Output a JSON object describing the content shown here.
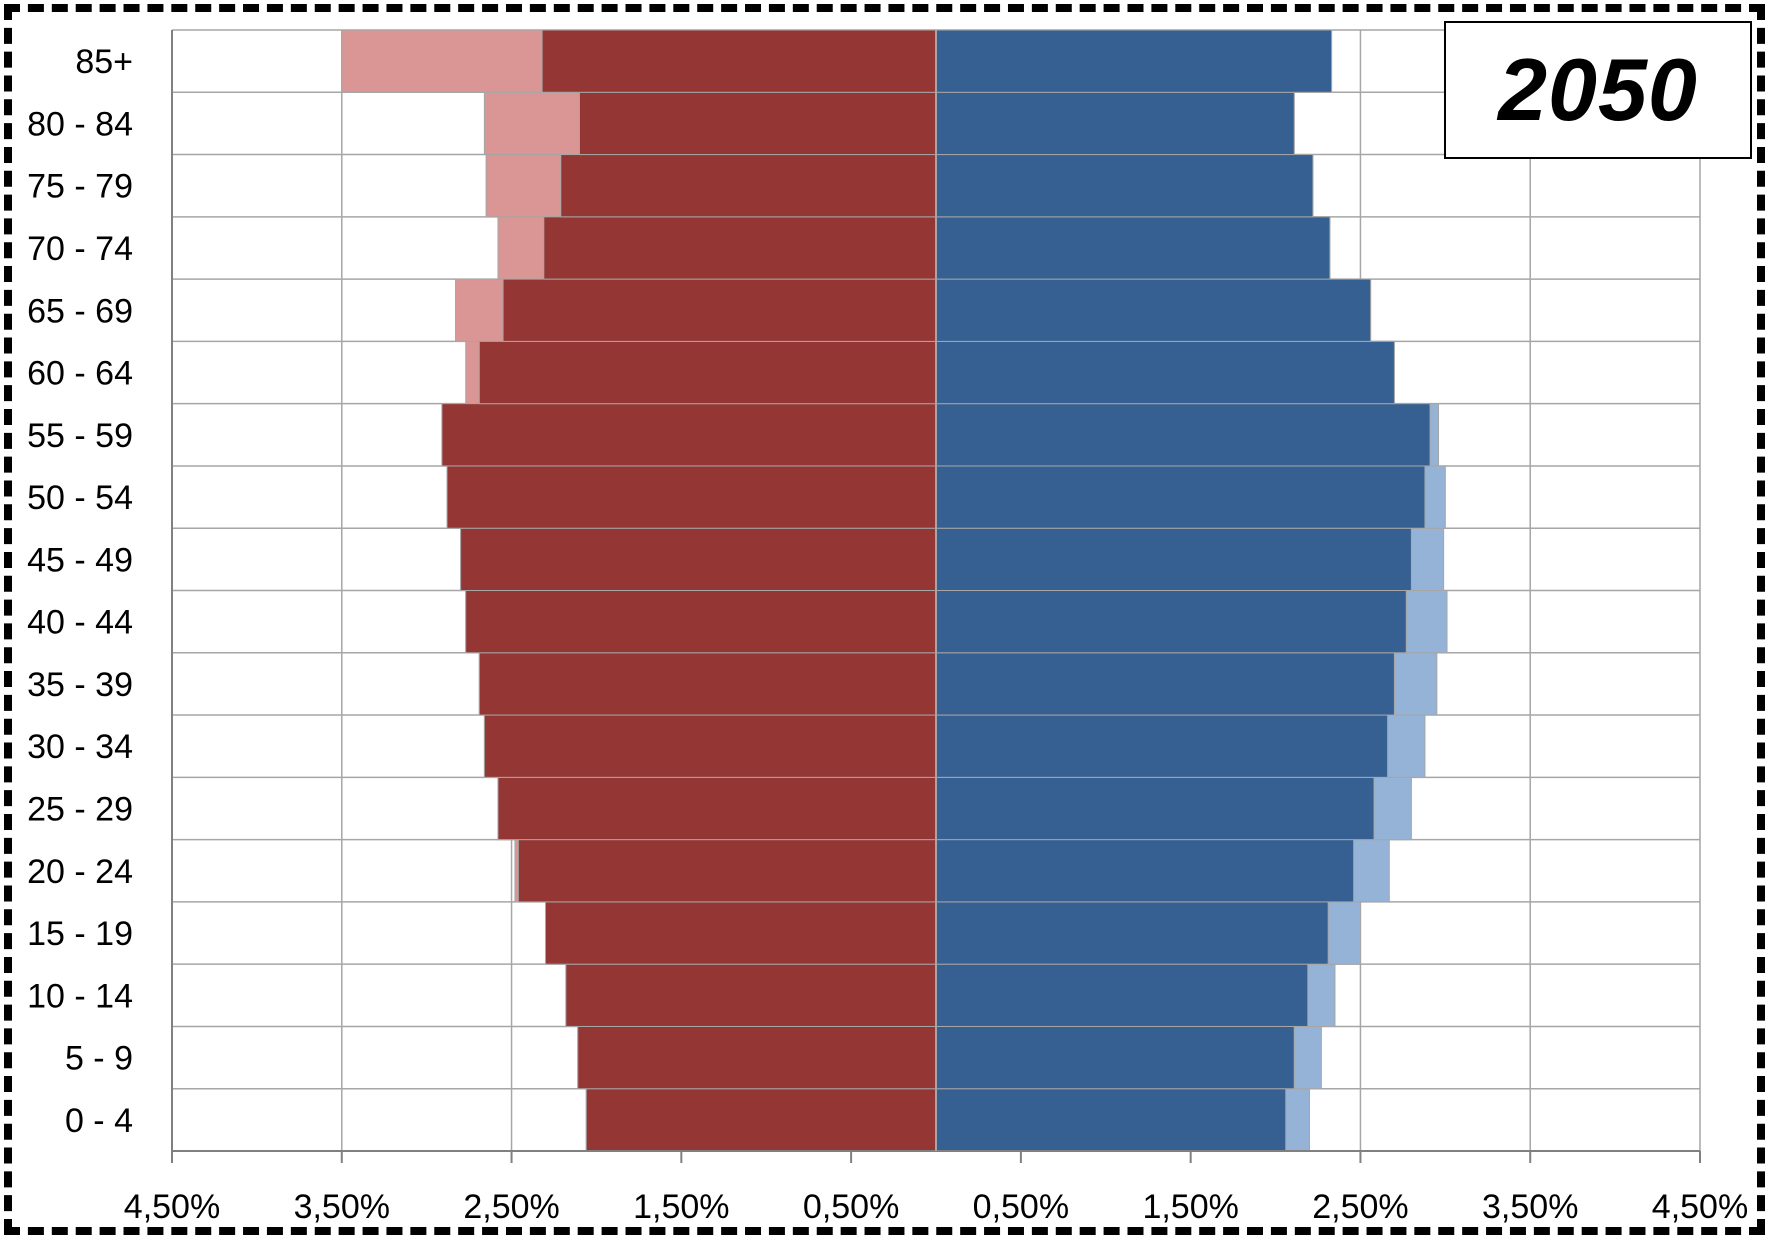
{
  "chart_data": {
    "type": "bar",
    "orientation": "horizontal-population-pyramid",
    "title": "2050",
    "categories": [
      "0 - 4",
      "5 - 9",
      "10 - 14",
      "15 - 19",
      "20 - 24",
      "25 - 29",
      "30 - 34",
      "35 - 39",
      "40 - 44",
      "45 - 49",
      "50 - 54",
      "55 - 59",
      "60 - 64",
      "65 - 69",
      "70 - 74",
      "75 - 79",
      "80 - 84",
      "85+"
    ],
    "x_tick_labels": [
      "4,50%",
      "3,50%",
      "2,50%",
      "1,50%",
      "0,50%",
      "0,50%",
      "1,50%",
      "2,50%",
      "3,50%",
      "4,50%"
    ],
    "xlim": [
      -4.5,
      4.5
    ],
    "series": [
      {
        "side": "left",
        "color": "#943634",
        "values": [
          2.06,
          2.11,
          2.18,
          2.3,
          2.46,
          2.58,
          2.66,
          2.69,
          2.77,
          2.8,
          2.88,
          2.91,
          2.69,
          2.55,
          2.31,
          2.21,
          2.1,
          2.32
        ]
      },
      {
        "side": "left",
        "color": "#D99694",
        "values": [
          2.06,
          2.11,
          2.18,
          2.3,
          2.48,
          2.58,
          2.66,
          2.69,
          2.77,
          2.8,
          2.88,
          2.91,
          2.77,
          2.83,
          2.58,
          2.65,
          2.66,
          3.5
        ]
      },
      {
        "side": "right",
        "color": "#366092",
        "values": [
          2.06,
          2.11,
          2.19,
          2.31,
          2.46,
          2.58,
          2.66,
          2.7,
          2.77,
          2.8,
          2.88,
          2.91,
          2.7,
          2.56,
          2.32,
          2.22,
          2.11,
          2.33
        ]
      },
      {
        "side": "right",
        "color": "#95B3D7",
        "values": [
          2.2,
          2.27,
          2.35,
          2.5,
          2.67,
          2.8,
          2.88,
          2.95,
          3.01,
          2.99,
          3.0,
          2.96,
          2.7,
          2.56,
          2.32,
          2.22,
          2.11,
          2.33
        ]
      }
    ],
    "grid": true,
    "legend": "none"
  }
}
